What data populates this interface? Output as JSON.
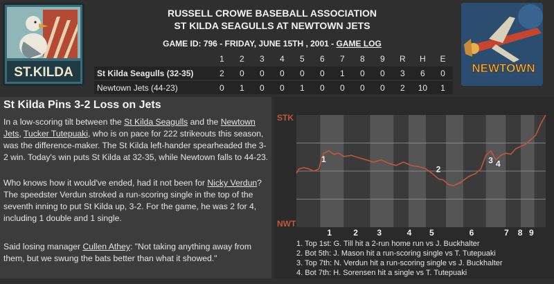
{
  "header": {
    "line1": "RUSSELL CROWE BASEBALL ASSOCIATION",
    "line2": "ST KILDA SEAGULLS AT NEWTOWN JETS",
    "game_info": "GAME ID: 796 - FRIDAY, JUNE 15TH , 2001 - ",
    "game_log_link": "GAME LOG"
  },
  "logos": {
    "left_text": "ST.KILDA",
    "right_text": "NEWTOWN"
  },
  "linescore": {
    "columns": [
      "1",
      "2",
      "3",
      "4",
      "5",
      "6",
      "7",
      "8",
      "9",
      "R",
      "H",
      "E"
    ],
    "rows": [
      {
        "team": "St Kilda Seagulls (32-35)",
        "values": [
          "2",
          "0",
          "0",
          "0",
          "0",
          "0",
          "1",
          "0",
          "0",
          "3",
          "6",
          "0"
        ]
      },
      {
        "team": "Newtown Jets (44-23)",
        "values": [
          "0",
          "1",
          "0",
          "0",
          "1",
          "0",
          "0",
          "0",
          "0",
          "2",
          "10",
          "1"
        ]
      }
    ]
  },
  "recap": {
    "headline": "St Kilda Pins 3-2 Loss on Jets",
    "p1": {
      "t1": "In a low-scoring tilt between the ",
      "team1": "St Kilda Seagulls",
      "t2": " and the ",
      "team2": "Newtown Jets",
      "t3": ", ",
      "player": "Tucker Tutepuaki",
      "t4": ", who is on pace for 222 strikeouts this season, was the difference-maker. The St Kilda left-hander spearheaded the 3-2 win. Today's win puts St Kilda at 32-35, while Newtown falls to 44-23."
    },
    "p2": {
      "t1": "Who knows how it would've ended, had it not been for ",
      "player": "Nicky Verdun",
      "t2": "? The speedster Verdun stroked a run-scoring single in the top of the seventh inning to put St Kilda up, 3-2. For the game, he was 2 for 4, including 1 double and 1 single."
    },
    "p3": {
      "t1": "Said losing manager ",
      "manager": "Cullen Athey",
      "t2": ": \"Not taking anything away from them, but we swung the bats better than what it showed.\""
    }
  },
  "chart": {
    "top_label": "STK",
    "bottom_label": "NWT",
    "innings": [
      "1",
      "2",
      "3",
      "4",
      "5",
      "6",
      "7",
      "8",
      "9"
    ],
    "markers": [
      {
        "label": "1",
        "x": 0.1,
        "y": 0.58
      },
      {
        "label": "2",
        "x": 0.56,
        "y": 0.49
      },
      {
        "label": "3",
        "x": 0.77,
        "y": 0.57
      },
      {
        "label": "4",
        "x": 0.8,
        "y": 0.54
      }
    ],
    "line_color": "#c0563e",
    "events": [
      "1. Top 1st: G. Till hit a 2-run home run vs J. Buckhalter",
      "2. Bot 5th: J. Mason hit a run-scoring single vs T. Tutepuaki",
      "3. Top 7th: N. Verdun hit a run-scoring single vs J. Buckhalter",
      "4. Bot 7th: H. Sorensen hit a single vs T. Tutepuaki"
    ]
  }
}
